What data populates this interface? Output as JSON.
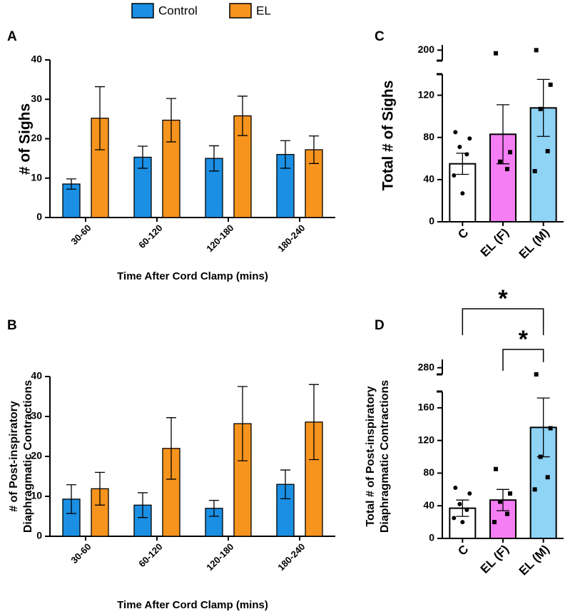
{
  "chart_data": [
    {
      "type": "grouped_bar",
      "panel": "A",
      "ylabel": [
        "# of Sighs"
      ],
      "xlabel": "Time After Cord Clamp (mins)",
      "categories": [
        "30-60",
        "60-120",
        "120-180",
        "180-240"
      ],
      "series": [
        {
          "name": "Control",
          "color": "#1a8fe3",
          "values": [
            8.5,
            15.3,
            15.0,
            16.0
          ],
          "errors": [
            1.3,
            2.8,
            3.2,
            3.5
          ]
        },
        {
          "name": "EL",
          "color": "#f7941d",
          "values": [
            25.2,
            24.7,
            25.8,
            17.2
          ],
          "errors": [
            8.0,
            5.5,
            5.0,
            3.5
          ]
        }
      ],
      "ylim": [
        0,
        40
      ],
      "yticks": [
        0,
        10,
        20,
        30,
        40
      ]
    },
    {
      "type": "grouped_bar",
      "panel": "B",
      "ylabel": [
        "# of Post-inspiratory",
        "Diaphragmatic Contractions"
      ],
      "xlabel": "Time After Cord Clamp (mins)",
      "categories": [
        "30-60",
        "60-120",
        "120-180",
        "180-240"
      ],
      "series": [
        {
          "color": "#1a8fe3",
          "values": [
            9.3,
            7.8,
            7.0,
            13.0
          ],
          "errors": [
            3.6,
            3.1,
            2.0,
            3.6
          ]
        },
        {
          "color": "#f7941d",
          "values": [
            11.9,
            22.0,
            28.2,
            28.6
          ],
          "errors": [
            4.1,
            7.7,
            9.3,
            9.4
          ]
        }
      ],
      "ylim": [
        0,
        40
      ],
      "yticks": [
        0,
        10,
        20,
        30,
        40
      ]
    },
    {
      "type": "bar",
      "panel": "C",
      "ylabel": [
        "Total # of Sighs"
      ],
      "categories": [
        "C",
        "EL (F)",
        "EL (M)"
      ],
      "values": [
        55,
        83,
        108
      ],
      "errors": [
        10,
        28,
        27
      ],
      "colors": [
        "#ffffff",
        "#f57ef5",
        "#8fd3f5"
      ],
      "point_shapes": [
        "circle",
        "square",
        "square"
      ],
      "points": [
        [
          85,
          79,
          71,
          64,
          44,
          27
        ],
        [
          197,
          66,
          57,
          50
        ],
        [
          200,
          130,
          107,
          67,
          48
        ]
      ],
      "ylim": [
        0,
        205
      ],
      "ybreak": [
        140,
        190
      ],
      "yticks": [
        0,
        40,
        80,
        120,
        200
      ]
    },
    {
      "type": "bar",
      "panel": "D",
      "ylabel": [
        "Total # of Post-inspiratory",
        "Diaphragmatic Contractions"
      ],
      "categories": [
        "C",
        "EL (F)",
        "EL (M)"
      ],
      "values": [
        37,
        47,
        136
      ],
      "errors": [
        10,
        13,
        36
      ],
      "colors": [
        "#ffffff",
        "#f57ef5",
        "#8fd3f5"
      ],
      "point_shapes": [
        "circle",
        "square",
        "square"
      ],
      "points": [
        [
          62,
          55,
          42,
          35,
          25,
          20
        ],
        [
          85,
          55,
          45,
          30,
          20
        ],
        [
          272,
          135,
          100,
          75,
          60
        ]
      ],
      "ylim": [
        0,
        290
      ],
      "ybreak": [
        180,
        272
      ],
      "yticks": [
        0,
        40,
        80,
        120,
        160,
        280
      ],
      "significance": [
        {
          "groups": [
            0,
            2
          ],
          "label": "*"
        },
        {
          "groups": [
            1,
            2
          ],
          "label": "*"
        }
      ]
    }
  ]
}
